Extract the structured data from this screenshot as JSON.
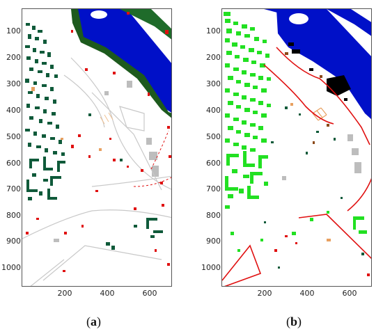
{
  "figure": {
    "panels": [
      {
        "id": "a",
        "caption_open": "(",
        "caption_letter": "a",
        "caption_close": ")"
      },
      {
        "id": "b",
        "caption_open": "(",
        "caption_letter": "b",
        "caption_close": ")"
      }
    ],
    "y_ticks": [
      "100",
      "200",
      "300",
      "400",
      "500",
      "600",
      "700",
      "800",
      "900",
      "1000"
    ],
    "x_ticks": [
      "200",
      "400",
      "600"
    ],
    "colors": {
      "water": "#0010c8",
      "tree_dark": "#0f5a3a",
      "tree_bright": "#22e022",
      "road_red": "#e01010",
      "gray": "#bdbdbd",
      "orange": "#e8a060",
      "black": "#000000",
      "brown": "#8b4a1a"
    }
  }
}
